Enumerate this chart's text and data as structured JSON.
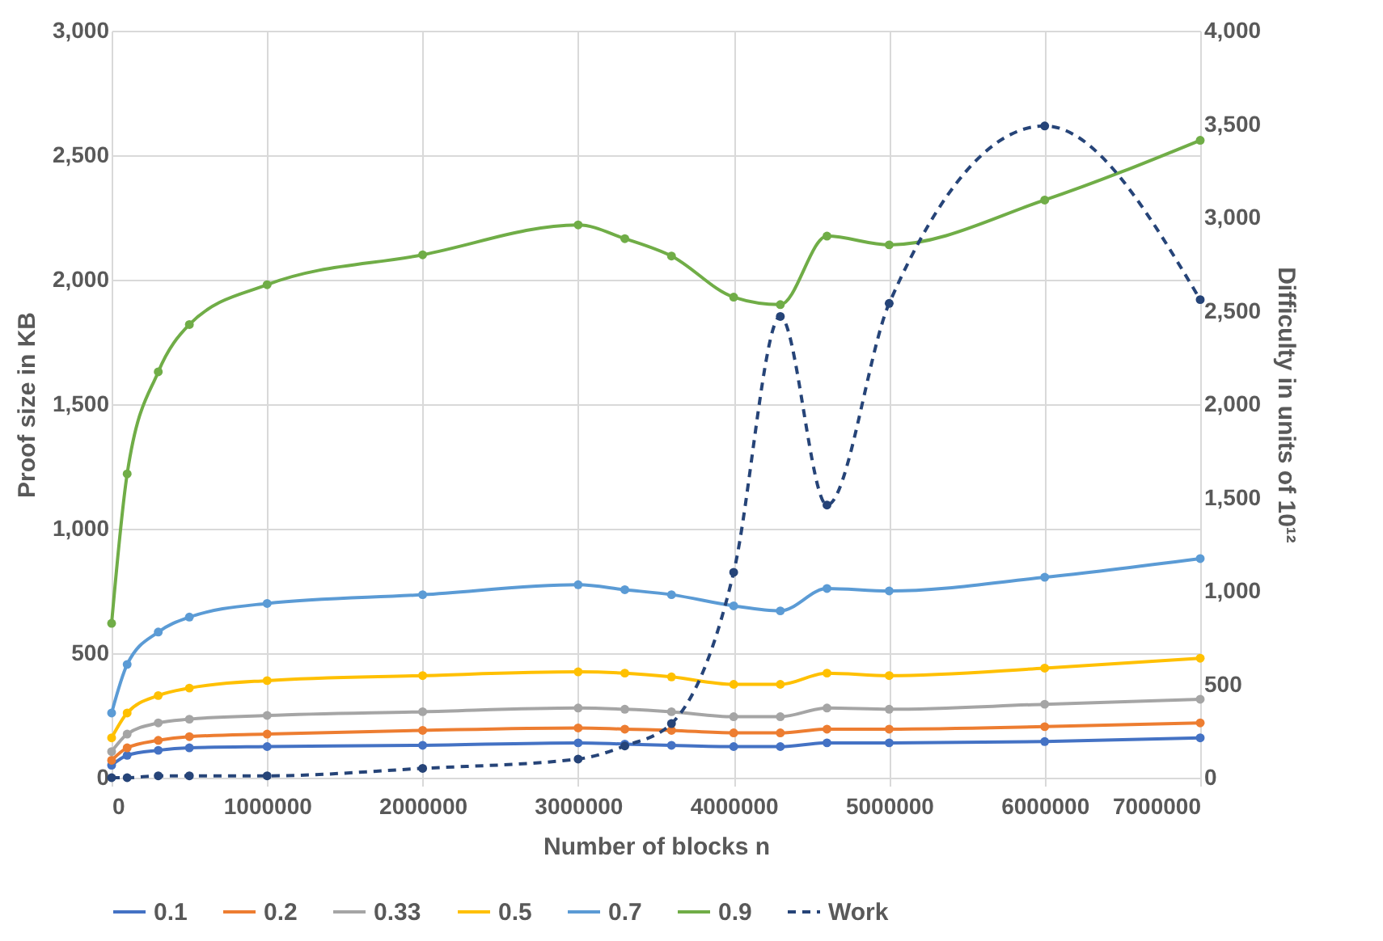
{
  "chart_data": {
    "type": "line",
    "xlabel": "Number of blocks n",
    "ylabel": "Proof size in KB",
    "y2label": "Difficulty in units of 10¹²",
    "x": [
      0,
      100000,
      300000,
      500000,
      1000000,
      2000000,
      3000000,
      3300000,
      3600000,
      4000000,
      4300000,
      4600000,
      5000000,
      6000000,
      7000000
    ],
    "series": [
      {
        "name": "0.1",
        "color": "#4472c4",
        "values": [
          50,
          90,
          110,
          120,
          125,
          130,
          140,
          135,
          130,
          125,
          125,
          140,
          140,
          145,
          160
        ]
      },
      {
        "name": "0.2",
        "color": "#ed7d31",
        "values": [
          70,
          120,
          150,
          165,
          175,
          190,
          200,
          195,
          190,
          180,
          180,
          195,
          195,
          205,
          220
        ]
      },
      {
        "name": "0.33",
        "color": "#a5a5a5",
        "values": [
          105,
          175,
          220,
          235,
          250,
          265,
          280,
          275,
          265,
          245,
          245,
          280,
          275,
          295,
          315
        ]
      },
      {
        "name": "0.5",
        "color": "#ffc000",
        "values": [
          160,
          260,
          330,
          360,
          390,
          410,
          425,
          420,
          405,
          375,
          375,
          420,
          410,
          440,
          480
        ]
      },
      {
        "name": "0.7",
        "color": "#5b9bd5",
        "values": [
          260,
          455,
          585,
          645,
          700,
          735,
          775,
          755,
          735,
          690,
          670,
          760,
          750,
          805,
          880
        ]
      },
      {
        "name": "0.9",
        "color": "#70ad47",
        "values": [
          620,
          1220,
          1630,
          1820,
          1980,
          2100,
          2220,
          2165,
          2095,
          1930,
          1900,
          2175,
          2140,
          2320,
          2560
        ]
      },
      {
        "name": "Work",
        "color": "#264478",
        "axis": "y2",
        "line_style": "dashed",
        "values": [
          0,
          0,
          10,
          10,
          10,
          50,
          100,
          170,
          290,
          1100,
          2470,
          1460,
          2540,
          3490,
          2560
        ]
      }
    ],
    "xlim": [
      0,
      7000000
    ],
    "xticks": [
      0,
      1000000,
      2000000,
      3000000,
      4000000,
      5000000,
      6000000,
      7000000
    ],
    "ylim": [
      0,
      3000
    ],
    "yticks": [
      0,
      500,
      {
        "value": 1000,
        "label": "1,000"
      },
      {
        "value": 1500,
        "label": "1,500"
      },
      {
        "value": 2000,
        "label": "2,000"
      },
      {
        "value": 2500,
        "label": "2,500"
      },
      {
        "value": 3000,
        "label": "3,000"
      }
    ],
    "y2lim": [
      0,
      4000
    ],
    "y2ticks": [
      0,
      500,
      {
        "value": 1000,
        "label": "1,000"
      },
      {
        "value": 1500,
        "label": "1,500"
      },
      {
        "value": 2000,
        "label": "2,000"
      },
      {
        "value": 2500,
        "label": "2,500"
      },
      {
        "value": 3000,
        "label": "3,000"
      },
      {
        "value": 3500,
        "label": "3,500"
      },
      {
        "value": 4000,
        "label": "4,000"
      }
    ],
    "grid": true,
    "legend": "bottom",
    "marker": "circle",
    "line_style": "solid"
  }
}
